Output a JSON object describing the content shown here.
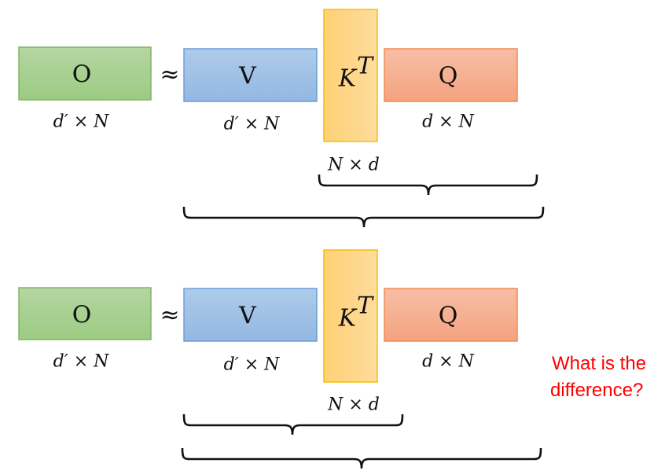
{
  "colors": {
    "green": "#a9d18e",
    "blue": "#9dc3e6",
    "yellow": "#ffd966",
    "orange": "#f4b183",
    "question": "#ff0000"
  },
  "top": {
    "o_label": "O",
    "approx": "≈",
    "v_label": "V",
    "k_label": "K",
    "k_sup": "T",
    "q_label": "Q",
    "o_dim": "d′ × N",
    "v_dim": "d′ × N",
    "k_dim": "N × d",
    "q_dim": "d × N"
  },
  "bottom": {
    "o_label": "O",
    "approx": "≈",
    "v_label": "V",
    "k_label": "K",
    "k_sup": "T",
    "q_label": "Q",
    "o_dim": "d′ × N",
    "v_dim": "d′ × N",
    "k_dim": "N × d",
    "q_dim": "d × N"
  },
  "question": {
    "line1": "What is the",
    "line2": "difference?"
  }
}
